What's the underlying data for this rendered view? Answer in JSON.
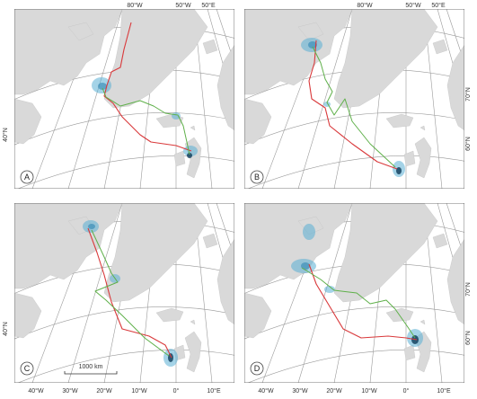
{
  "panels": [
    {
      "id": "A",
      "label": "A"
    },
    {
      "id": "B",
      "label": "B"
    },
    {
      "id": "C",
      "label": "C"
    },
    {
      "id": "D",
      "label": "D"
    }
  ],
  "top_lon_labels": [
    "80°W",
    "50°W",
    "50°E"
  ],
  "bottom_lon_labels": [
    "40°W",
    "30°W",
    "20°W",
    "10°W",
    "0°",
    "10°E"
  ],
  "lat_labels_left": [
    "40°N"
  ],
  "lat_labels_right": [
    "70°N",
    "60°N"
  ],
  "scale_bar_label": "1000 km",
  "colors": {
    "track_a": "#d9393b",
    "track_b": "#5fb04a",
    "density_light": "#5aaed3",
    "density_dark": "#0d3a58",
    "land": "#d9d9d9"
  }
}
